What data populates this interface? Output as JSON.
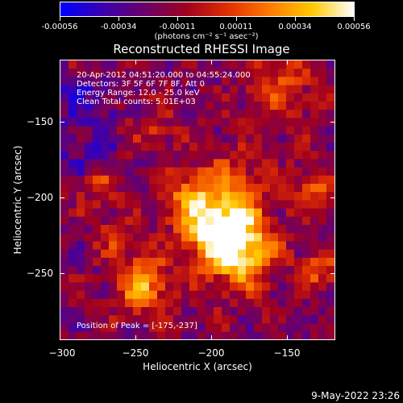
{
  "colorbar": {
    "colors": [
      "#0000ff",
      "#3a00b0",
      "#6a006a",
      "#a00020",
      "#e03000",
      "#ff7a00",
      "#ffc800",
      "#ffffff"
    ],
    "ticks": [
      "-0.00056",
      "-0.00034",
      "-0.00011",
      "0.00011",
      "0.00034",
      "0.00056"
    ],
    "units": "(photons cm⁻² s⁻¹ asec⁻²)"
  },
  "title": "Reconstructed RHESSI Image",
  "annotations": {
    "time": "20-Apr-2012 04:51:20.000 to 04:55:24.000",
    "detectors": "Detectors: 3F 5F 6F 7F 8F, Att 0",
    "energy": "Energy Range: 12.0 - 25.0 keV",
    "method": "Clean     Total counts: 5.01E+03",
    "peak": "Position of Peak = [-175,-237]"
  },
  "axes": {
    "xlabel": "Heliocentric X (arcsec)",
    "ylabel": "Heliocentric Y (arcsec)",
    "xticks": [
      "−300",
      "−250",
      "−200",
      "−150"
    ],
    "yticks": [
      "−150",
      "−200",
      "−250"
    ]
  },
  "footer_date": "9-May-2022 23:26"
}
